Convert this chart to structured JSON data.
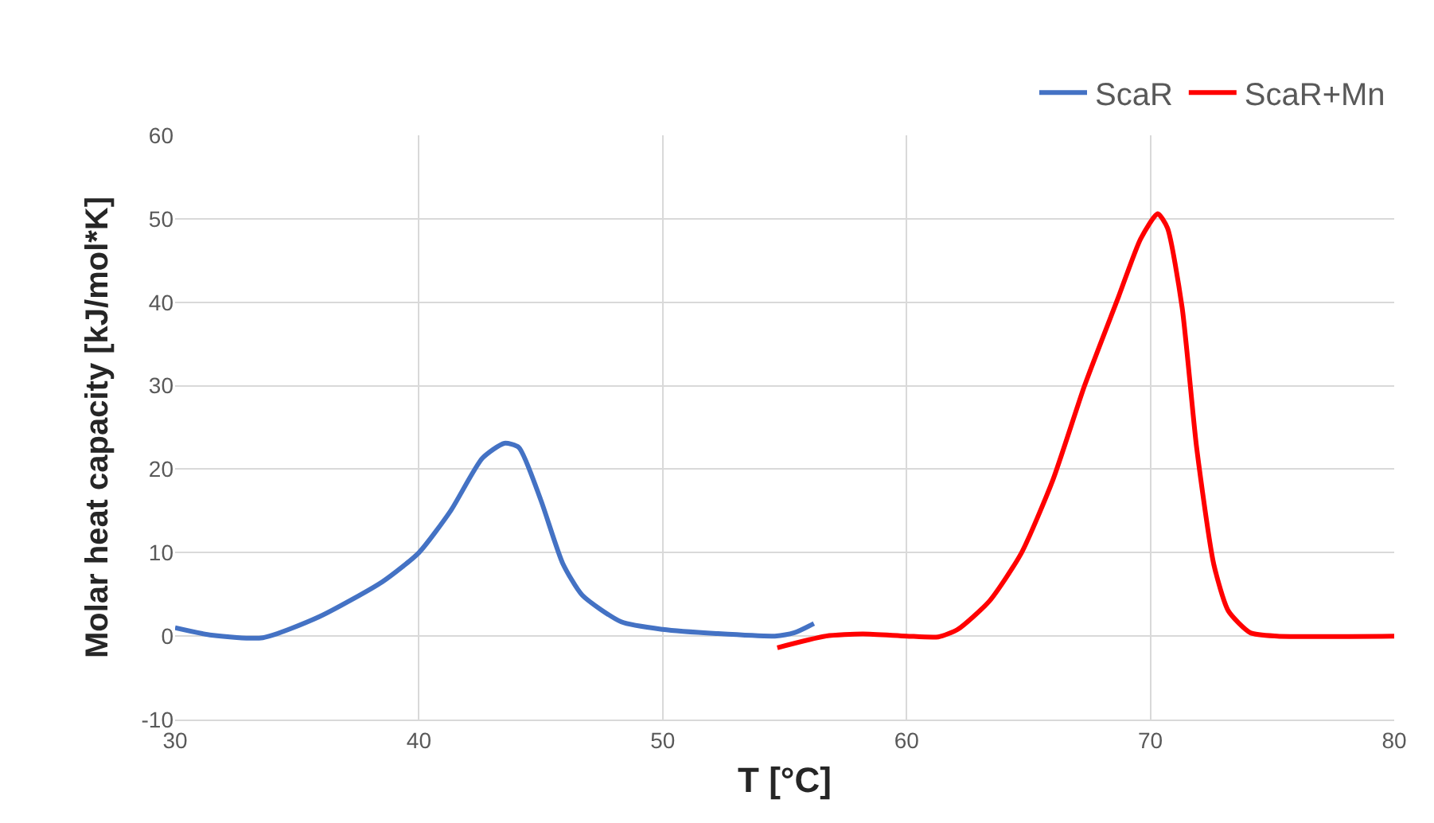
{
  "chart_data": {
    "type": "line",
    "xlabel": "T [°C]",
    "ylabel": "Molar heat capacity [kJ/mol*K]",
    "xlim": [
      30,
      80
    ],
    "xticks": [
      30,
      40,
      50,
      60,
      70,
      80
    ],
    "ylim": [
      -10,
      60
    ],
    "yticks": [
      -10,
      0,
      10,
      20,
      30,
      40,
      50,
      60
    ],
    "grid": true,
    "legend": "top right",
    "marker": "none",
    "line_style": "solid",
    "series": [
      {
        "name": "ScaR",
        "color": "#4472c4",
        "x": [
          30,
          31.5,
          33.6,
          35.9,
          38.5,
          40,
          41.3,
          42.6,
          43.5,
          44.1,
          45,
          45.9,
          46.7,
          48.3,
          50,
          52.2,
          54.6,
          55.4,
          56.2
        ],
        "values": [
          1.0,
          0.1,
          -0.2,
          2.3,
          6.5,
          10,
          15,
          21.3,
          23.1,
          22.6,
          16.3,
          8.7,
          4.9,
          1.7,
          0.8,
          0.3,
          0,
          0.4,
          1.5
        ]
      },
      {
        "name": "ScaR+Mn",
        "color": "#ff0000",
        "x": [
          54.7,
          56.7,
          58.2,
          60,
          61.3,
          62.1,
          63.4,
          64.7,
          66.0,
          67.3,
          68.7,
          69.6,
          70.3,
          70.7,
          71.3,
          71.9,
          72.6,
          73.2,
          74.1,
          75.2,
          80
        ],
        "values": [
          -1.4,
          0,
          0.25,
          0,
          -0.1,
          0.8,
          4.2,
          9.9,
          18.7,
          30,
          40.7,
          47.6,
          50.6,
          48.9,
          39.4,
          22.5,
          8.6,
          3,
          0.4,
          0,
          0
        ]
      }
    ]
  }
}
